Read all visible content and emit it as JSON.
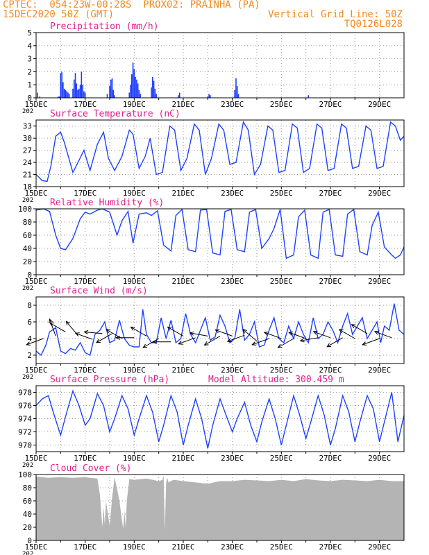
{
  "header": {
    "line1_left": "CPTEC:  054:23W-00:28S  PROX02: PRAINHA (PA)",
    "line2_left": "15DEC2020 50Z (GMT)",
    "line2_right": "Vertical Grid Line: 50Z",
    "line3_right": "TQ0126L028",
    "color": "#f08a1e"
  },
  "colors": {
    "title": "#e0208a",
    "line": "#1e40ff",
    "bar": "#1a3cff",
    "cloud": "#b4b4b4",
    "grid": "#9a9a9a"
  },
  "x_axis": {
    "ticks": [
      "15DEC",
      "17DEC",
      "19DEC",
      "21DEC",
      "23DEC",
      "25DEC",
      "27DEC",
      "29DEC"
    ],
    "year_fragment": "202"
  },
  "chart_data": [
    {
      "id": "precip",
      "type": "bar",
      "title": "Precipitation (mm/h)",
      "yticks": [
        "0",
        "1",
        "2",
        "3",
        "4",
        "5"
      ],
      "ylim": [
        0,
        5
      ],
      "xlim_days": [
        0,
        15
      ],
      "values": [
        [
          0.05,
          0.4
        ],
        [
          0.15,
          0.1
        ],
        [
          0.9,
          0.1
        ],
        [
          0.95,
          0.1
        ],
        [
          1.0,
          1.9
        ],
        [
          1.05,
          2.0
        ],
        [
          1.1,
          1.2
        ],
        [
          1.15,
          0.7
        ],
        [
          1.2,
          0.6
        ],
        [
          1.25,
          0.5
        ],
        [
          1.3,
          0.4
        ],
        [
          1.35,
          0.3
        ],
        [
          1.5,
          0.7
        ],
        [
          1.55,
          1.4
        ],
        [
          1.6,
          1.9
        ],
        [
          1.65,
          1.1
        ],
        [
          1.7,
          0.6
        ],
        [
          1.75,
          0.7
        ],
        [
          1.8,
          1.0
        ],
        [
          1.85,
          2.0
        ],
        [
          1.9,
          1.0
        ],
        [
          1.95,
          0.5
        ],
        [
          2.0,
          0.4
        ],
        [
          2.9,
          0.3
        ],
        [
          3.0,
          0.9
        ],
        [
          3.05,
          1.4
        ],
        [
          3.1,
          1.5
        ],
        [
          3.15,
          0.6
        ],
        [
          3.2,
          0.2
        ],
        [
          3.8,
          0.4
        ],
        [
          3.85,
          1.0
        ],
        [
          3.9,
          1.8
        ],
        [
          3.95,
          2.7
        ],
        [
          4.0,
          2.2
        ],
        [
          4.05,
          1.6
        ],
        [
          4.1,
          1.4
        ],
        [
          4.15,
          1.1
        ],
        [
          4.2,
          0.6
        ],
        [
          4.25,
          0.3
        ],
        [
          4.7,
          0.8
        ],
        [
          4.75,
          1.6
        ],
        [
          4.8,
          1.3
        ],
        [
          4.85,
          0.7
        ],
        [
          4.9,
          0.3
        ],
        [
          5.8,
          0.2
        ],
        [
          5.85,
          0.4
        ],
        [
          7.0,
          0.1
        ],
        [
          7.05,
          0.3
        ],
        [
          7.1,
          0.2
        ],
        [
          8.1,
          0.6
        ],
        [
          8.15,
          1.5
        ],
        [
          8.2,
          0.9
        ],
        [
          8.25,
          0.3
        ],
        [
          11.1,
          0.2
        ],
        [
          13.0,
          0.05
        ]
      ]
    },
    {
      "id": "temp",
      "type": "line",
      "title": "Surface Temperature (nC)",
      "yticks": [
        "18",
        "21",
        "24",
        "27",
        "30",
        "33"
      ],
      "ylim": [
        18,
        34.5
      ],
      "xlim_days": [
        0,
        15
      ],
      "x": [
        0,
        0.25,
        0.45,
        0.6,
        0.8,
        1.0,
        1.15,
        1.3,
        1.5,
        1.75,
        1.95,
        2.2,
        2.5,
        2.75,
        2.95,
        3.2,
        3.5,
        3.8,
        3.95,
        4.2,
        4.45,
        4.65,
        4.9,
        5.15,
        5.45,
        5.65,
        5.9,
        6.15,
        6.45,
        6.65,
        6.9,
        7.15,
        7.45,
        7.65,
        7.9,
        8.15,
        8.45,
        8.65,
        8.9,
        9.15,
        9.45,
        9.65,
        9.9,
        10.15,
        10.45,
        10.65,
        10.9,
        11.15,
        11.45,
        11.65,
        11.9,
        12.15,
        12.45,
        12.65,
        12.9,
        13.15,
        13.45,
        13.65,
        13.9,
        14.15,
        14.45,
        14.65,
        14.85,
        15.0
      ],
      "y": [
        21,
        19.5,
        19.3,
        23,
        30.5,
        31.5,
        29,
        25.8,
        21.5,
        24.5,
        27,
        22,
        28.5,
        31.5,
        25,
        22,
        25.5,
        32,
        31,
        22.5,
        25.5,
        30,
        21,
        21.5,
        33,
        32,
        22,
        25,
        33.5,
        32,
        21,
        25,
        33.5,
        32,
        23.5,
        24,
        34,
        32,
        21,
        23.5,
        33,
        32,
        21.5,
        22,
        33.5,
        32.5,
        21.5,
        22.5,
        33.5,
        32.5,
        22,
        22.5,
        33.5,
        32.5,
        22.5,
        23,
        33,
        32,
        22.5,
        23,
        34,
        33,
        29.5,
        30.5
      ]
    },
    {
      "id": "rh",
      "type": "line",
      "title": "Relative Humidity (%)",
      "yticks": [
        "0",
        "20",
        "40",
        "60",
        "80",
        "100"
      ],
      "ylim": [
        0,
        100
      ],
      "xlim_days": [
        0,
        15
      ],
      "x": [
        0,
        0.3,
        0.55,
        0.8,
        1.0,
        1.2,
        1.5,
        1.8,
        2.0,
        2.2,
        2.5,
        2.7,
        3.0,
        3.3,
        3.5,
        3.75,
        3.95,
        4.2,
        4.5,
        4.7,
        4.95,
        5.2,
        5.5,
        5.7,
        5.95,
        6.2,
        6.5,
        6.7,
        6.95,
        7.2,
        7.5,
        7.7,
        7.95,
        8.2,
        8.5,
        8.7,
        8.95,
        9.2,
        9.5,
        9.7,
        9.95,
        10.2,
        10.5,
        10.7,
        10.95,
        11.2,
        11.5,
        11.7,
        11.95,
        12.2,
        12.5,
        12.7,
        12.95,
        13.2,
        13.5,
        13.7,
        13.95,
        14.2,
        14.5,
        14.65,
        14.85,
        15.0
      ],
      "y": [
        98,
        100,
        96,
        60,
        40,
        38,
        55,
        85,
        95,
        92,
        98,
        100,
        95,
        60,
        82,
        96,
        48,
        92,
        94,
        90,
        97,
        45,
        36,
        90,
        99,
        38,
        35,
        98,
        99,
        33,
        30,
        96,
        99,
        38,
        35,
        95,
        99,
        40,
        55,
        70,
        99,
        25,
        30,
        88,
        98,
        30,
        25,
        95,
        99,
        30,
        28,
        92,
        99,
        35,
        30,
        75,
        95,
        42,
        30,
        25,
        30,
        42
      ]
    },
    {
      "id": "wind",
      "type": "line",
      "title": "Surface Wind (m/s)",
      "yticks": [
        "2",
        "4",
        "6",
        "8"
      ],
      "ylim": [
        1,
        9
      ],
      "xlim_days": [
        0,
        15
      ],
      "x": [
        0,
        0.2,
        0.4,
        0.55,
        0.8,
        1.0,
        1.2,
        1.4,
        1.6,
        1.8,
        2.0,
        2.2,
        2.4,
        2.6,
        2.8,
        3.0,
        3.2,
        3.4,
        3.6,
        3.8,
        4.0,
        4.2,
        4.35,
        4.5,
        4.7,
        4.9,
        5.1,
        5.3,
        5.5,
        5.7,
        5.9,
        6.1,
        6.3,
        6.5,
        6.7,
        6.9,
        7.1,
        7.3,
        7.5,
        7.7,
        7.9,
        8.1,
        8.3,
        8.5,
        8.7,
        8.9,
        9.1,
        9.3,
        9.5,
        9.7,
        9.9,
        10.1,
        10.3,
        10.5,
        10.7,
        10.9,
        11.1,
        11.3,
        11.5,
        11.7,
        11.9,
        12.1,
        12.3,
        12.5,
        12.7,
        12.9,
        13.1,
        13.3,
        13.5,
        13.7,
        13.9,
        14.05,
        14.2,
        14.4,
        14.6,
        14.8,
        15.0
      ],
      "y": [
        2.5,
        2.0,
        3.2,
        4.8,
        5.3,
        2.5,
        2.2,
        2.8,
        2.6,
        3.5,
        2.3,
        2.0,
        4.5,
        5.0,
        6.0,
        3.5,
        3.8,
        6.2,
        4.0,
        3.2,
        3.0,
        3.0,
        7.5,
        4.5,
        3.5,
        3.5,
        6.5,
        4.0,
        6.2,
        3.5,
        4.0,
        7.0,
        4.5,
        3.5,
        5.0,
        6.5,
        3.8,
        4.2,
        6.8,
        5.5,
        3.5,
        4.0,
        7.5,
        3.8,
        4.5,
        6.0,
        3.0,
        3.2,
        5.0,
        6.5,
        4.0,
        3.5,
        5.5,
        4.0,
        6.0,
        4.5,
        3.5,
        6.5,
        4.0,
        4.5,
        6.0,
        5.0,
        3.5,
        5.5,
        7.0,
        4.5,
        5.5,
        6.5,
        4.0,
        5.0,
        6.0,
        3.5,
        5.5,
        5.0,
        8.2,
        5.0,
        4.5
      ],
      "arrows": [
        [
          0.3,
          4.0,
          200
        ],
        [
          0.8,
          4.3,
          110
        ],
        [
          1.2,
          4.8,
          150
        ],
        [
          1.7,
          4.4,
          130
        ],
        [
          2.3,
          3.9,
          160
        ],
        [
          2.7,
          4.6,
          175
        ],
        [
          3.1,
          4.6,
          210
        ],
        [
          3.5,
          4.0,
          150
        ],
        [
          4.0,
          4.1,
          180
        ],
        [
          4.5,
          4.3,
          150
        ],
        [
          5.0,
          4.0,
          210
        ],
        [
          5.5,
          3.6,
          180
        ],
        [
          6.0,
          4.3,
          150
        ],
        [
          6.5,
          4.1,
          200
        ],
        [
          7.0,
          4.3,
          170
        ],
        [
          7.5,
          4.3,
          210
        ],
        [
          8.0,
          4.3,
          160
        ],
        [
          8.5,
          4.4,
          200
        ],
        [
          9.0,
          3.7,
          140
        ],
        [
          9.5,
          4.0,
          200
        ],
        [
          10.0,
          4.0,
          160
        ],
        [
          10.5,
          4.0,
          210
        ],
        [
          11.0,
          4.0,
          160
        ],
        [
          11.5,
          4.1,
          190
        ],
        [
          12.0,
          4.1,
          160
        ],
        [
          12.5,
          4.1,
          210
        ],
        [
          13.0,
          4.0,
          150
        ],
        [
          13.5,
          4.6,
          150
        ],
        [
          14.0,
          4.0,
          200
        ],
        [
          14.5,
          4.1,
          160
        ]
      ]
    },
    {
      "id": "pres",
      "type": "line",
      "title": "Surface Pressure (hPa)",
      "extra": "Model Altitude: 300.459 m",
      "yticks": [
        "970",
        "972",
        "974",
        "976",
        "978"
      ],
      "ylim": [
        969,
        979
      ],
      "xlim_days": [
        0,
        15
      ],
      "x": [
        0,
        0.25,
        0.5,
        0.7,
        1.0,
        1.25,
        1.5,
        1.75,
        2.0,
        2.2,
        2.5,
        2.75,
        3.0,
        3.2,
        3.5,
        3.75,
        4.0,
        4.2,
        4.5,
        4.75,
        5.0,
        5.2,
        5.5,
        5.75,
        6.0,
        6.2,
        6.5,
        6.75,
        7.0,
        7.2,
        7.5,
        7.75,
        8.0,
        8.2,
        8.5,
        8.75,
        9.0,
        9.2,
        9.5,
        9.75,
        10.0,
        10.2,
        10.5,
        10.75,
        11.0,
        11.2,
        11.5,
        11.75,
        12.0,
        12.2,
        12.5,
        12.75,
        13.0,
        13.2,
        13.5,
        13.75,
        14.0,
        14.2,
        14.5,
        14.75,
        15.0
      ],
      "y": [
        976,
        977,
        977.5,
        975,
        971.5,
        975,
        978.2,
        976,
        973,
        974,
        977.8,
        976,
        972,
        974,
        977.5,
        975.5,
        971.5,
        974,
        977.5,
        975,
        970.5,
        973,
        977.5,
        975,
        970,
        973,
        977,
        974,
        969.5,
        973,
        977,
        974.5,
        972,
        974,
        976.5,
        973,
        970.5,
        973.5,
        977,
        974,
        970,
        973,
        977.5,
        974.5,
        971,
        973.5,
        977.5,
        974.5,
        970,
        972.5,
        977.5,
        975,
        970.5,
        973.5,
        977.5,
        975.5,
        970.5,
        973.5,
        978,
        970.5,
        974.5
      ]
    },
    {
      "id": "cloud",
      "type": "area",
      "title": "Cloud Cover (%)",
      "yticks": [
        "0",
        "20",
        "40",
        "60",
        "80",
        "100"
      ],
      "ylim": [
        0,
        100
      ],
      "xlim_days": [
        0,
        15
      ],
      "x": [
        0,
        0.5,
        1.0,
        1.5,
        2.0,
        2.2,
        2.5,
        2.6,
        2.7,
        2.75,
        2.8,
        2.85,
        3.0,
        3.1,
        3.2,
        3.4,
        3.5,
        3.55,
        3.6,
        3.65,
        3.7,
        3.8,
        4.0,
        4.5,
        5.0,
        5.15,
        5.2,
        5.25,
        5.3,
        5.35,
        5.4,
        5.6,
        6.0,
        6.5,
        7.0,
        7.5,
        8.0,
        8.5,
        9.0,
        9.5,
        10.0,
        10.5,
        11.0,
        11.5,
        12.0,
        12.5,
        13.0,
        13.5,
        14.0,
        14.5,
        15.0
      ],
      "y": [
        97,
        95,
        96,
        95,
        96,
        95,
        94,
        70,
        20,
        50,
        25,
        60,
        22,
        65,
        96,
        60,
        30,
        18,
        45,
        20,
        60,
        93,
        92,
        94,
        90,
        92,
        98,
        15,
        88,
        95,
        88,
        92,
        90,
        88,
        86,
        90,
        90,
        92,
        91,
        90,
        92,
        90,
        93,
        91,
        90,
        92,
        91,
        90,
        92,
        90,
        90
      ]
    }
  ]
}
